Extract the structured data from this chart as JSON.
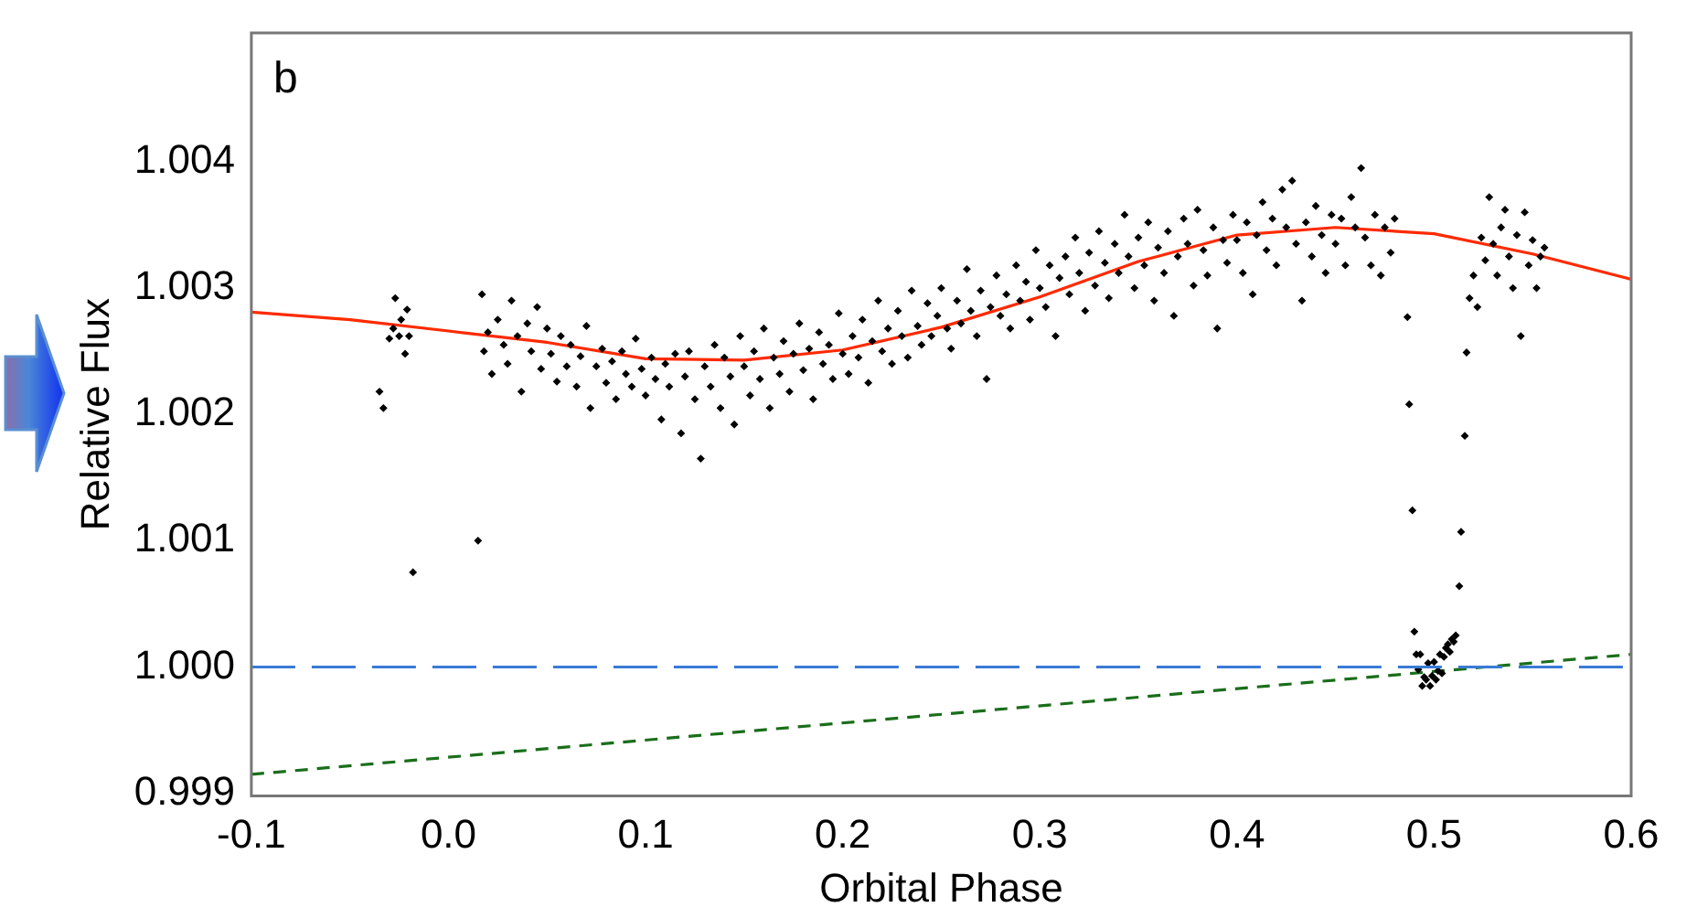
{
  "chart_data": {
    "type": "scatter",
    "xlabel": "Orbital Phase",
    "ylabel": "Relative Flux",
    "annotations": [
      "b"
    ],
    "xlim": [
      -0.1,
      0.6
    ],
    "xticks": [
      -0.1,
      {
        "value": 0,
        "label": "0.0"
      },
      0.1,
      0.2,
      0.3,
      0.4,
      0.5,
      0.6
    ],
    "ylim": [
      0.99898,
      1.00502
    ],
    "yticks": [
      0.999,
      {
        "value": 1,
        "label": "1.000"
      },
      1.001,
      1.002,
      1.003,
      1.004
    ],
    "grid": false,
    "legend": false,
    "ref_lines": [
      {
        "axis": "y",
        "value": 1,
        "color": "#3a7bd5",
        "line_style": "dashed"
      }
    ],
    "series": [
      {
        "marker": "diamond",
        "color": "#000000",
        "x": [
          -0.035,
          -0.033,
          -0.03,
          -0.028,
          -0.027,
          -0.025,
          -0.024,
          -0.022,
          -0.021,
          -0.02,
          -0.018,
          0.015,
          0.017,
          0.018,
          0.02,
          0.022,
          0.025,
          0.028,
          0.03,
          0.032,
          0.035,
          0.037,
          0.04,
          0.042,
          0.045,
          0.047,
          0.05,
          0.052,
          0.055,
          0.057,
          0.06,
          0.062,
          0.065,
          0.067,
          0.07,
          0.072,
          0.075,
          0.078,
          0.08,
          0.083,
          0.085,
          0.088,
          0.09,
          0.093,
          0.095,
          0.098,
          0.1,
          0.103,
          0.105,
          0.108,
          0.11,
          0.112,
          0.115,
          0.118,
          0.12,
          0.122,
          0.125,
          0.128,
          0.13,
          0.133,
          0.135,
          0.138,
          0.14,
          0.143,
          0.145,
          0.148,
          0.15,
          0.153,
          0.155,
          0.158,
          0.16,
          0.163,
          0.165,
          0.168,
          0.17,
          0.173,
          0.175,
          0.178,
          0.18,
          0.183,
          0.185,
          0.188,
          0.19,
          0.193,
          0.195,
          0.198,
          0.2,
          0.203,
          0.205,
          0.208,
          0.21,
          0.213,
          0.215,
          0.218,
          0.22,
          0.223,
          0.225,
          0.228,
          0.23,
          0.233,
          0.235,
          0.238,
          0.24,
          0.243,
          0.245,
          0.248,
          0.25,
          0.253,
          0.255,
          0.258,
          0.26,
          0.263,
          0.265,
          0.268,
          0.27,
          0.273,
          0.275,
          0.278,
          0.28,
          0.283,
          0.285,
          0.288,
          0.29,
          0.293,
          0.295,
          0.298,
          0.3,
          0.303,
          0.305,
          0.308,
          0.31,
          0.313,
          0.315,
          0.318,
          0.32,
          0.323,
          0.325,
          0.328,
          0.33,
          0.333,
          0.335,
          0.338,
          0.34,
          0.343,
          0.345,
          0.348,
          0.35,
          0.353,
          0.355,
          0.358,
          0.36,
          0.363,
          0.365,
          0.368,
          0.37,
          0.373,
          0.375,
          0.378,
          0.38,
          0.383,
          0.385,
          0.388,
          0.39,
          0.393,
          0.395,
          0.398,
          0.4,
          0.403,
          0.405,
          0.408,
          0.41,
          0.413,
          0.415,
          0.418,
          0.42,
          0.423,
          0.425,
          0.428,
          0.43,
          0.433,
          0.435,
          0.438,
          0.44,
          0.443,
          0.445,
          0.448,
          0.45,
          0.453,
          0.455,
          0.458,
          0.46,
          0.463,
          0.465,
          0.468,
          0.47,
          0.473,
          0.475,
          0.478,
          0.48,
          0.4865,
          0.4874,
          0.489,
          0.49,
          0.491,
          0.492,
          0.493,
          0.494,
          0.495,
          0.496,
          0.497,
          0.498,
          0.499,
          0.5,
          0.501,
          0.502,
          0.503,
          0.504,
          0.505,
          0.506,
          0.507,
          0.508,
          0.509,
          0.51,
          0.511,
          0.5128,
          0.5137,
          0.5156,
          0.5165,
          0.518,
          0.52,
          0.522,
          0.524,
          0.526,
          0.528,
          0.53,
          0.532,
          0.534,
          0.536,
          0.538,
          0.54,
          0.542,
          0.544,
          0.546,
          0.548,
          0.55,
          0.552,
          0.554,
          0.556
        ],
        "values": [
          1.00218,
          1.00205,
          1.0026,
          1.00268,
          1.00292,
          1.00262,
          1.00275,
          1.00248,
          1.00283,
          1.00262,
          1.00075,
          1.001,
          1.00295,
          1.0025,
          1.00265,
          1.00232,
          1.00275,
          1.00255,
          1.0024,
          1.0029,
          1.00262,
          1.00218,
          1.00272,
          1.0025,
          1.00285,
          1.00236,
          1.00268,
          1.00248,
          1.00226,
          1.00262,
          1.00238,
          1.00255,
          1.00222,
          1.00246,
          1.0027,
          1.00205,
          1.00238,
          1.00252,
          1.00225,
          1.00242,
          1.00212,
          1.0025,
          1.00232,
          1.00222,
          1.0026,
          1.00236,
          1.00215,
          1.00245,
          1.00228,
          1.00196,
          1.0024,
          1.00222,
          1.00248,
          1.00185,
          1.0023,
          1.0025,
          1.00212,
          1.00165,
          1.00238,
          1.00222,
          1.00255,
          1.00205,
          1.00245,
          1.0023,
          1.00192,
          1.00262,
          1.00238,
          1.00215,
          1.0025,
          1.00228,
          1.00268,
          1.00205,
          1.00245,
          1.00232,
          1.00258,
          1.00218,
          1.00248,
          1.00272,
          1.00235,
          1.00252,
          1.00212,
          1.00265,
          1.0024,
          1.00255,
          1.00228,
          1.0028,
          1.00248,
          1.00232,
          1.00262,
          1.00245,
          1.00275,
          1.00225,
          1.00258,
          1.0029,
          1.0025,
          1.00268,
          1.0024,
          1.00282,
          1.00262,
          1.00245,
          1.00298,
          1.0027,
          1.00255,
          1.00288,
          1.00262,
          1.00278,
          1.003,
          1.00268,
          1.00252,
          1.0029,
          1.00272,
          1.00315,
          1.00282,
          1.00262,
          1.00298,
          1.00228,
          1.00285,
          1.0031,
          1.00278,
          1.00295,
          1.00268,
          1.00318,
          1.0029,
          1.00305,
          1.00275,
          1.0033,
          1.003,
          1.00285,
          1.00318,
          1.00262,
          1.00308,
          1.00325,
          1.00295,
          1.0034,
          1.00312,
          1.00282,
          1.00328,
          1.00302,
          1.00345,
          1.0032,
          1.00292,
          1.00335,
          1.00312,
          1.00358,
          1.00325,
          1.003,
          1.0034,
          1.00318,
          1.00352,
          1.0029,
          1.00332,
          1.00312,
          1.00345,
          1.00278,
          1.00325,
          1.00355,
          1.00335,
          1.00302,
          1.00362,
          1.0033,
          1.0031,
          1.00348,
          1.00268,
          1.00338,
          1.0032,
          1.00358,
          1.00338,
          1.00312,
          1.00352,
          1.00295,
          1.00342,
          1.00368,
          1.0033,
          1.00355,
          1.00318,
          1.00378,
          1.00348,
          1.00385,
          1.00335,
          1.0029,
          1.00352,
          1.00325,
          1.00365,
          1.00342,
          1.00312,
          1.00358,
          1.00335,
          1.00355,
          1.00318,
          1.00372,
          1.00348,
          1.00395,
          1.0034,
          1.00318,
          1.00358,
          1.0031,
          1.00348,
          1.00328,
          1.00355,
          1.00277,
          1.00208,
          1.00124,
          1.00028,
          1.0001,
          0.99998,
          1.0001,
          0.99985,
          0.99992,
          0.9999,
          1.00003,
          0.99985,
          0.99993,
          1.00004,
          0.9999,
          0.99997,
          1.0001,
          0.99995,
          1.00008,
          1.00015,
          1.00018,
          1.00012,
          1.00022,
          1.0002,
          1.00025,
          1.00064,
          1.00107,
          1.00183,
          1.00249,
          1.00292,
          1.0031,
          1.00285,
          1.0034,
          1.00322,
          1.00372,
          1.00335,
          1.0031,
          1.00348,
          1.00362,
          1.00325,
          1.003,
          1.00342,
          1.00262,
          1.0036,
          1.00318,
          1.00338,
          1.003,
          1.00325,
          1.00332
        ]
      },
      {
        "type": "line",
        "marker": "none",
        "color": "#ff2a00",
        "line_style": "solid",
        "x": [
          -0.1,
          -0.05,
          0,
          0.05,
          0.1,
          0.15,
          0.2,
          0.25,
          0.3,
          0.35,
          0.4,
          0.45,
          0.5,
          0.55,
          0.6
        ],
        "values": [
          1.00281,
          1.00275,
          1.00266,
          1.00257,
          1.00244,
          1.00243,
          1.00251,
          1.00269,
          1.00293,
          1.00321,
          1.00342,
          1.00348,
          1.00343,
          1.00327,
          1.00307
        ]
      },
      {
        "type": "line",
        "marker": "none",
        "color": "#1a6e1a",
        "line_style": "dashed",
        "x": [
          -0.1,
          0.6
        ],
        "values": [
          0.99915,
          1.0001
        ]
      }
    ]
  }
}
